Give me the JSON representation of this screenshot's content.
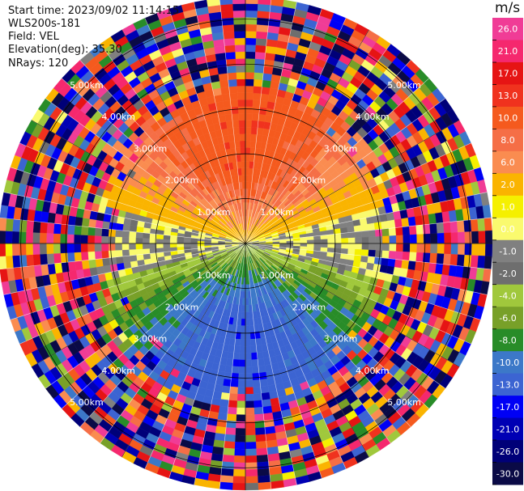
{
  "header": {
    "start_time": "Start time: 2023/09/02 11:14:15",
    "instrument": "WLS200s-181",
    "field": "Field: VEL",
    "elevation": "Elevation(deg): 35.30",
    "nrays": "NRays: 120"
  },
  "chart_data": {
    "type": "heatmap",
    "projection": "polar-ppi",
    "field": "VEL",
    "unit": "m/s",
    "nrays": 120,
    "elevation_deg": 35.3,
    "range_rings": [
      {
        "value": 1.0,
        "label": "1.00km"
      },
      {
        "value": 2.0,
        "label": "2.00km"
      },
      {
        "value": 3.0,
        "label": "3.00km"
      },
      {
        "value": 4.0,
        "label": "4.00km"
      },
      {
        "value": 5.0,
        "label": "5.00km"
      }
    ],
    "max_range_km": 5.5,
    "colorbar": {
      "label": "m/s",
      "range": [
        -30.0,
        30.0
      ],
      "ticks": [
        "26.0",
        "21.0",
        "17.0",
        "13.0",
        "10.0",
        "8.0",
        "6.0",
        "2.0",
        "1.0",
        "0.0",
        "-1.0",
        "-2.0",
        "-4.0",
        "-6.0",
        "-8.0",
        "-10.0",
        "-13.0",
        "-17.0",
        "-21.0",
        "-26.0",
        "-30.0"
      ],
      "bins": [
        {
          "min": 26,
          "max": 30,
          "color": "#f03c96"
        },
        {
          "min": 21,
          "max": 26,
          "color": "#f5286e"
        },
        {
          "min": 17,
          "max": 21,
          "color": "#e61414"
        },
        {
          "min": 13,
          "max": 17,
          "color": "#f0321e"
        },
        {
          "min": 10,
          "max": 13,
          "color": "#f55a1e"
        },
        {
          "min": 8,
          "max": 10,
          "color": "#f56e46"
        },
        {
          "min": 6,
          "max": 8,
          "color": "#fa8c50"
        },
        {
          "min": 2,
          "max": 6,
          "color": "#fab400"
        },
        {
          "min": 1,
          "max": 2,
          "color": "#f5f000"
        },
        {
          "min": 0,
          "max": 1,
          "color": "#fafa6e"
        },
        {
          "min": -1,
          "max": 0,
          "color": "#808080"
        },
        {
          "min": -2,
          "max": -1,
          "color": "#6e6e6e"
        },
        {
          "min": -4,
          "max": -2,
          "color": "#a0c83c"
        },
        {
          "min": -6,
          "max": -4,
          "color": "#78a028"
        },
        {
          "min": -8,
          "max": -6,
          "color": "#288c28"
        },
        {
          "min": -10,
          "max": -8,
          "color": "#3c78c8"
        },
        {
          "min": -13,
          "max": -10,
          "color": "#3c64d2"
        },
        {
          "min": -17,
          "max": -13,
          "color": "#0000f5"
        },
        {
          "min": -21,
          "max": -17,
          "color": "#0000b4"
        },
        {
          "min": -26,
          "max": -21,
          "color": "#000078"
        },
        {
          "min": -30,
          "max": -26,
          "color": "#0a0a46"
        }
      ]
    }
  }
}
